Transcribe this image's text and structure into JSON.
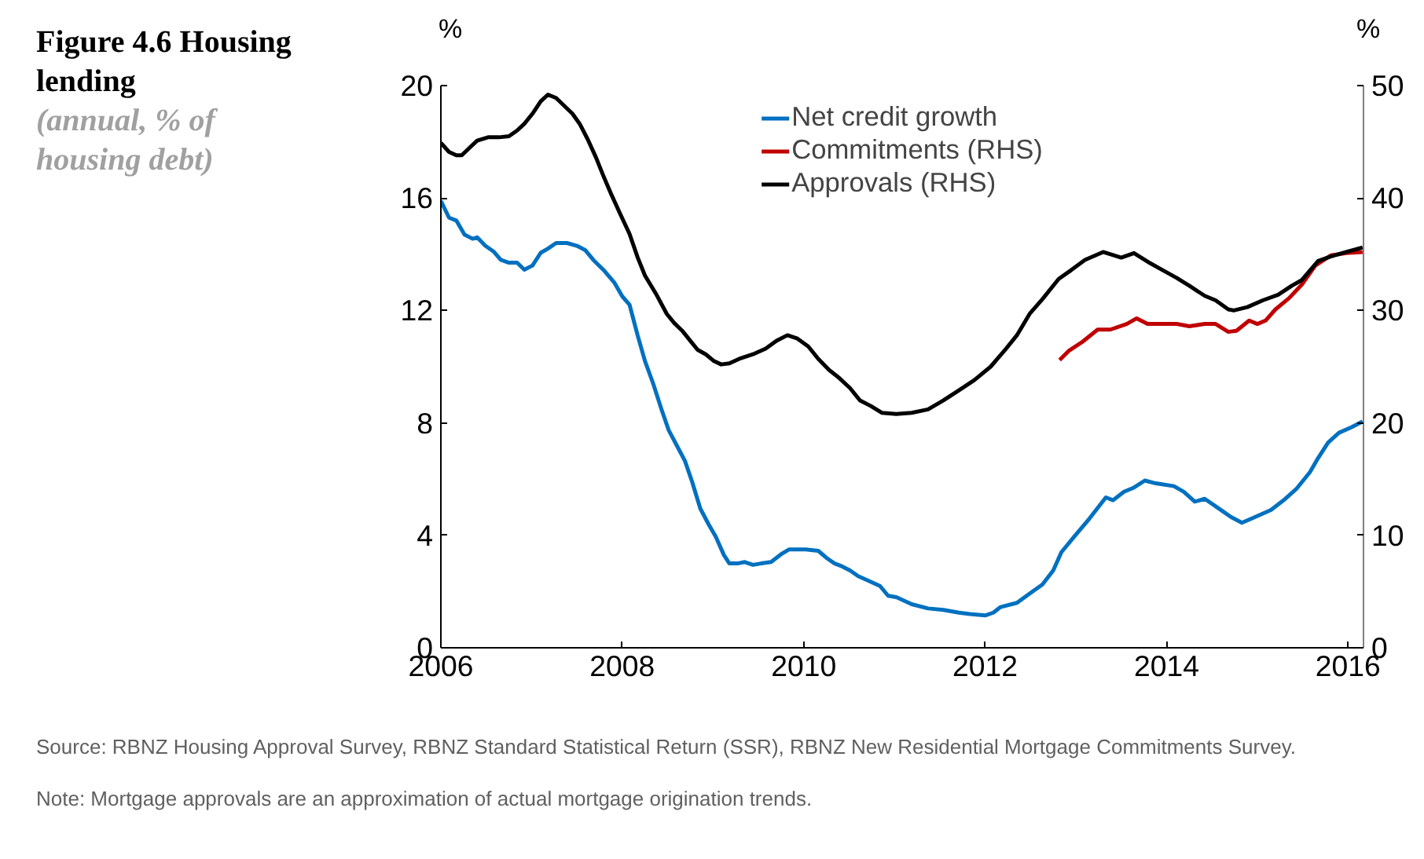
{
  "chart_data": {
    "type": "line",
    "title": "Figure 4.6 Housing lending",
    "subtitle": "(annual, % of housing debt)",
    "ylabel": "%",
    "y2label": "%",
    "xlim": [
      2006,
      2016.17
    ],
    "xticks": [
      2006,
      2008,
      2010,
      2012,
      2014,
      2016
    ],
    "ylim": [
      0,
      20
    ],
    "yticks": [
      0,
      4,
      8,
      12,
      16,
      20
    ],
    "y2lim": [
      0,
      50
    ],
    "y2ticks": [
      0,
      10,
      20,
      30,
      40,
      50
    ],
    "grid": false,
    "legend": "top",
    "line_style": "solid",
    "marker": "none",
    "series": [
      {
        "name": "Net credit growth",
        "color": "#0070c0",
        "x": [
          2006.0,
          2006.09,
          2006.17,
          2006.26,
          2006.35,
          2006.4,
          2006.49,
          2006.58,
          2006.66,
          2006.75,
          2006.84,
          2006.92,
          2007.01,
          2007.1,
          2007.18,
          2007.27,
          2007.39,
          2007.5,
          2007.59,
          2007.68,
          2007.79,
          2007.91,
          2008.0,
          2008.08,
          2008.17,
          2008.25,
          2008.34,
          2008.43,
          2008.51,
          2008.6,
          2008.69,
          2008.77,
          2008.86,
          2008.95,
          2009.03,
          2009.12,
          2009.18,
          2009.27,
          2009.35,
          2009.44,
          2009.53,
          2009.64,
          2009.76,
          2009.84,
          2009.93,
          2010.02,
          2010.16,
          2010.25,
          2010.34,
          2010.42,
          2010.51,
          2010.6,
          2010.84,
          2010.93,
          2011.02,
          2011.19,
          2011.37,
          2011.54,
          2011.71,
          2011.83,
          2012.0,
          2012.09,
          2012.17,
          2012.35,
          2012.52,
          2012.63,
          2012.75,
          2012.84,
          2012.98,
          2013.15,
          2013.33,
          2013.41,
          2013.53,
          2013.64,
          2013.76,
          2013.88,
          2014.08,
          2014.19,
          2014.31,
          2014.42,
          2014.6,
          2014.71,
          2014.83,
          2014.94,
          2015.15,
          2015.29,
          2015.43,
          2015.58,
          2015.67,
          2015.78,
          2015.9,
          2016.04,
          2016.16
        ],
        "values": [
          15.9,
          15.3,
          15.2,
          14.7,
          14.55,
          14.6,
          14.3,
          14.1,
          13.8,
          13.7,
          13.7,
          13.45,
          13.6,
          14.05,
          14.2,
          14.4,
          14.4,
          14.3,
          14.15,
          13.8,
          13.45,
          13.0,
          12.5,
          12.2,
          11.1,
          10.2,
          9.4,
          8.5,
          7.75,
          7.2,
          6.65,
          5.9,
          4.95,
          4.4,
          3.95,
          3.3,
          3.0,
          3.0,
          3.05,
          2.95,
          3.0,
          3.05,
          3.35,
          3.5,
          3.5,
          3.5,
          3.45,
          3.2,
          3.0,
          2.9,
          2.75,
          2.55,
          2.2,
          1.85,
          1.8,
          1.55,
          1.4,
          1.35,
          1.25,
          1.2,
          1.15,
          1.25,
          1.45,
          1.6,
          2.0,
          2.25,
          2.75,
          3.4,
          3.95,
          4.6,
          5.35,
          5.25,
          5.55,
          5.7,
          5.95,
          5.85,
          5.75,
          5.55,
          5.2,
          5.3,
          4.9,
          4.65,
          4.45,
          4.6,
          4.9,
          5.25,
          5.65,
          6.25,
          6.75,
          7.3,
          7.65,
          7.85,
          8.05
        ]
      },
      {
        "name": "Commitments (RHS)",
        "color": "#c00000",
        "axis": "y2",
        "x": [
          2012.82,
          2012.92,
          2013.07,
          2013.24,
          2013.38,
          2013.56,
          2013.67,
          2013.79,
          2013.96,
          2014.11,
          2014.25,
          2014.42,
          2014.54,
          2014.68,
          2014.77,
          2014.91,
          2015.0,
          2015.09,
          2015.2,
          2015.35,
          2015.49,
          2015.64,
          2015.81,
          2015.98,
          2016.16
        ],
        "values": [
          25.6,
          26.4,
          27.2,
          28.3,
          28.3,
          28.8,
          29.3,
          28.8,
          28.8,
          28.8,
          28.6,
          28.8,
          28.8,
          28.1,
          28.2,
          29.1,
          28.8,
          29.1,
          30.1,
          31.1,
          32.3,
          34.0,
          34.9,
          35.1,
          35.2
        ]
      },
      {
        "name": "Approvals (RHS)",
        "color": "#000000",
        "axis": "y2",
        "x": [
          2006.0,
          2006.09,
          2006.17,
          2006.23,
          2006.32,
          2006.4,
          2006.52,
          2006.64,
          2006.75,
          2006.84,
          2006.92,
          2007.01,
          2007.1,
          2007.18,
          2007.27,
          2007.36,
          2007.45,
          2007.53,
          2007.62,
          2007.71,
          2007.79,
          2007.88,
          2007.97,
          2008.08,
          2008.17,
          2008.25,
          2008.37,
          2008.49,
          2008.57,
          2008.66,
          2008.75,
          2008.83,
          2008.92,
          2009.01,
          2009.09,
          2009.18,
          2009.29,
          2009.44,
          2009.58,
          2009.7,
          2009.82,
          2009.93,
          2010.05,
          2010.16,
          2010.28,
          2010.39,
          2010.51,
          2010.62,
          2010.74,
          2010.86,
          2011.02,
          2011.19,
          2011.37,
          2011.54,
          2011.71,
          2011.88,
          2012.06,
          2012.23,
          2012.35,
          2012.49,
          2012.63,
          2012.81,
          2012.95,
          2013.1,
          2013.3,
          2013.5,
          2013.64,
          2013.82,
          2013.93,
          2014.11,
          2014.25,
          2014.42,
          2014.54,
          2014.68,
          2014.74,
          2014.89,
          2015.06,
          2015.23,
          2015.38,
          2015.49,
          2015.67,
          2015.81,
          2015.98,
          2016.16
        ],
        "values": [
          44.9,
          44.1,
          43.8,
          43.8,
          44.5,
          45.1,
          45.4,
          45.4,
          45.5,
          46.0,
          46.6,
          47.5,
          48.6,
          49.2,
          48.9,
          48.2,
          47.5,
          46.6,
          45.2,
          43.6,
          42.0,
          40.3,
          38.7,
          36.8,
          34.7,
          33.1,
          31.5,
          29.7,
          28.9,
          28.2,
          27.3,
          26.5,
          26.1,
          25.5,
          25.2,
          25.3,
          25.7,
          26.1,
          26.6,
          27.3,
          27.8,
          27.5,
          26.8,
          25.7,
          24.7,
          24.0,
          23.1,
          22.0,
          21.5,
          20.9,
          20.8,
          20.9,
          21.2,
          22.0,
          22.9,
          23.8,
          25.0,
          26.6,
          27.8,
          29.7,
          31.0,
          32.8,
          33.6,
          34.5,
          35.2,
          34.7,
          35.1,
          34.2,
          33.7,
          32.9,
          32.2,
          31.3,
          30.9,
          30.1,
          30.0,
          30.3,
          30.9,
          31.4,
          32.2,
          32.7,
          34.4,
          34.8,
          35.2,
          35.6
        ]
      }
    ],
    "annotations": [
      "Source: RBNZ Housing Approval Survey, RBNZ Standard Statistical Return (SSR), RBNZ New Residential Mortgage Commitments Survey.",
      "Note: Mortgage approvals are an approximation of actual mortgage origination trends."
    ]
  }
}
